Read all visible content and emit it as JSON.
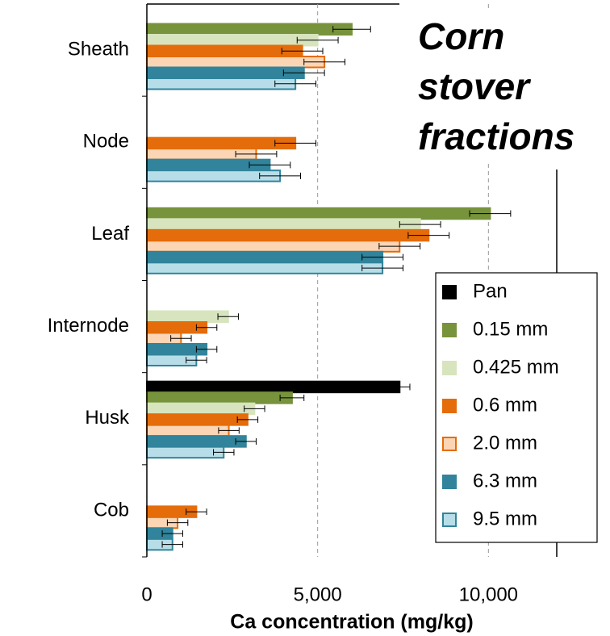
{
  "chart_data": {
    "type": "barh",
    "title": "Corn stover fractions",
    "xlabel": "Ca concentration  (mg/kg)",
    "categories": [
      "Sheath",
      "Node",
      "Leaf",
      "Internode",
      "Husk",
      "Cob"
    ],
    "xlim": [
      0,
      12000
    ],
    "xticks": [
      0,
      {
        "value": 5000,
        "label": "5,000"
      },
      {
        "value": 10000,
        "label": "10,000"
      }
    ],
    "grid": true,
    "legend": "lower right",
    "series": [
      {
        "name": "Pan",
        "color": "#000000",
        "edgecolor": "#000000",
        "values": [
          null,
          null,
          null,
          null,
          7400,
          null
        ],
        "errors": [
          null,
          null,
          null,
          null,
          300,
          null
        ]
      },
      {
        "name": "0.15 mm",
        "color": "#77933c",
        "edgecolor": "#77933c",
        "values": [
          6000,
          null,
          10050,
          null,
          4250,
          null
        ],
        "errors": [
          550,
          null,
          600,
          null,
          350,
          null
        ]
      },
      {
        "name": "0.425 mm",
        "color": "#d7e4bd",
        "edgecolor": "#d7e4bd",
        "values": [
          5000,
          null,
          8000,
          2380,
          3150,
          null
        ],
        "errors": [
          600,
          null,
          600,
          300,
          300,
          null
        ]
      },
      {
        "name": "0.6 mm",
        "color": "#e46c0a",
        "edgecolor": "#e46c0a",
        "values": [
          4550,
          4350,
          8250,
          1750,
          2950,
          1450
        ],
        "errors": [
          600,
          600,
          600,
          300,
          300,
          300
        ]
      },
      {
        "name": "2.0 mm",
        "color": "#fcd5b5",
        "edgecolor": "#e46c0a",
        "values": [
          5200,
          3200,
          7400,
          1000,
          2400,
          900
        ],
        "errors": [
          600,
          600,
          600,
          300,
          300,
          300
        ]
      },
      {
        "name": "6.3 mm",
        "color": "#31849b",
        "edgecolor": "#31849b",
        "values": [
          4600,
          3600,
          6900,
          1750,
          2900,
          750
        ],
        "errors": [
          600,
          600,
          600,
          300,
          300,
          300
        ]
      },
      {
        "name": "9.5 mm",
        "color": "#b7dee8",
        "edgecolor": "#31849b",
        "values": [
          4350,
          3900,
          6900,
          1450,
          2250,
          750
        ],
        "errors": [
          600,
          600,
          600,
          300,
          300,
          300
        ]
      }
    ]
  }
}
